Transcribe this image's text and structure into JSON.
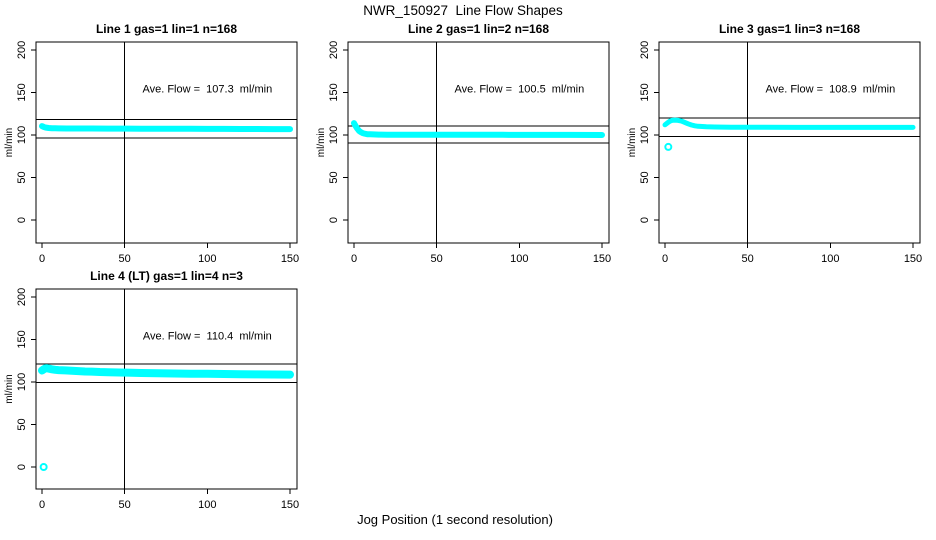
{
  "page": {
    "title": "NWR_150927  Line Flow Shapes",
    "xlabel": "Jog Position (1 second resolution)"
  },
  "colors": {
    "background": "#ffffff",
    "data_points": "#00ffff",
    "axis": "#000000"
  },
  "chart_data": {
    "type": "scatter",
    "title": "NWR_150927  Line Flow Shapes",
    "xlabel": "Jog Position (1 second resolution)",
    "grid": false,
    "legend": "none",
    "x_ticks": [
      0,
      50,
      100,
      150
    ],
    "y_ticks": [
      0,
      50,
      100,
      150,
      200
    ],
    "xlim": [
      -4.5,
      154.5
    ],
    "ylim": [
      -25,
      209.5
    ],
    "point_color": "#00ffff",
    "subplots": [
      {
        "title": "Line 1 gas=1 lin=1 n=168",
        "ylabel": "ml/min",
        "annotation": "Ave. Flow =  107.3  ml/min",
        "avg_flow_ml_min": 107.3,
        "n": 168,
        "hlines": [
          118.0,
          96.6
        ],
        "vline": 50,
        "band_thickness_px": 6,
        "points": [
          [
            0,
            110.5
          ],
          [
            1,
            109.5
          ],
          [
            2,
            108.8
          ],
          [
            4,
            108.2
          ],
          [
            6,
            108.0
          ],
          [
            8,
            107.9
          ],
          [
            10,
            107.8
          ],
          [
            15,
            107.7
          ],
          [
            20,
            107.6
          ],
          [
            30,
            107.6
          ],
          [
            40,
            107.5
          ],
          [
            50,
            107.5
          ],
          [
            60,
            107.4
          ],
          [
            70,
            107.4
          ],
          [
            80,
            107.3
          ],
          [
            90,
            107.3
          ],
          [
            100,
            107.2
          ],
          [
            110,
            107.2
          ],
          [
            120,
            107.1
          ],
          [
            130,
            107.1
          ],
          [
            140,
            107.0
          ],
          [
            150,
            107.0
          ]
        ],
        "outliers": []
      },
      {
        "title": "Line 2 gas=1 lin=2 n=168",
        "ylabel": "ml/min",
        "annotation": "Ave. Flow =  100.5  ml/min",
        "avg_flow_ml_min": 100.5,
        "n": 168,
        "hlines": [
          110.6,
          90.5
        ],
        "vline": 50,
        "band_thickness_px": 6,
        "points": [
          [
            0,
            114.0
          ],
          [
            1,
            110.5
          ],
          [
            2,
            107.5
          ],
          [
            3,
            105.0
          ],
          [
            4,
            103.5
          ],
          [
            5,
            102.5
          ],
          [
            6,
            101.8
          ],
          [
            8,
            101.0
          ],
          [
            10,
            100.8
          ],
          [
            15,
            100.5
          ],
          [
            20,
            100.4
          ],
          [
            30,
            100.3
          ],
          [
            50,
            100.3
          ],
          [
            70,
            100.2
          ],
          [
            90,
            100.2
          ],
          [
            110,
            100.1
          ],
          [
            130,
            100.1
          ],
          [
            150,
            100.0
          ]
        ],
        "outliers": []
      },
      {
        "title": "Line 3 gas=1 lin=3 n=168",
        "ylabel": "ml/min",
        "annotation": "Ave. Flow =  108.9  ml/min",
        "avg_flow_ml_min": 108.9,
        "n": 168,
        "hlines": [
          119.8,
          98.0
        ],
        "vline": 50,
        "band_thickness_px": 5,
        "points": [
          [
            0,
            112.0
          ],
          [
            1,
            113.5
          ],
          [
            2,
            115.0
          ],
          [
            3,
            116.3
          ],
          [
            4,
            117.0
          ],
          [
            5,
            117.4
          ],
          [
            6,
            117.5
          ],
          [
            8,
            117.2
          ],
          [
            10,
            116.3
          ],
          [
            12,
            114.8
          ],
          [
            14,
            113.2
          ],
          [
            16,
            111.8
          ],
          [
            18,
            110.8
          ],
          [
            20,
            110.2
          ],
          [
            25,
            109.6
          ],
          [
            30,
            109.4
          ],
          [
            40,
            109.2
          ],
          [
            60,
            109.1
          ],
          [
            80,
            109.0
          ],
          [
            100,
            109.0
          ],
          [
            120,
            108.9
          ],
          [
            150,
            108.9
          ]
        ],
        "outliers": [
          [
            2,
            86
          ]
        ]
      },
      {
        "title": "Line 4 (LT) gas=1 lin=4 n=3",
        "ylabel": "ml/min",
        "annotation": "Ave. Flow =  110.4  ml/min",
        "avg_flow_ml_min": 110.4,
        "n": 3,
        "hlines": [
          121.4,
          99.4
        ],
        "vline": 50,
        "band_thickness_px": 8,
        "points": [
          [
            0,
            113.5
          ],
          [
            1,
            115.0
          ],
          [
            2,
            116.0
          ],
          [
            3,
            116.2
          ],
          [
            4,
            115.8
          ],
          [
            6,
            115.0
          ],
          [
            8,
            114.4
          ],
          [
            10,
            114.0
          ],
          [
            14,
            113.6
          ],
          [
            18,
            113.2
          ],
          [
            22,
            112.8
          ],
          [
            26,
            112.4
          ],
          [
            30,
            112.2
          ],
          [
            35,
            111.8
          ],
          [
            40,
            111.5
          ],
          [
            50,
            111.0
          ],
          [
            60,
            110.6
          ],
          [
            70,
            110.3
          ],
          [
            80,
            110.0
          ],
          [
            90,
            109.8
          ],
          [
            100,
            109.6
          ],
          [
            110,
            109.4
          ],
          [
            120,
            109.2
          ],
          [
            130,
            109.0
          ],
          [
            140,
            108.8
          ],
          [
            150,
            108.7
          ]
        ],
        "outliers": [
          [
            1,
            0
          ]
        ]
      }
    ]
  }
}
